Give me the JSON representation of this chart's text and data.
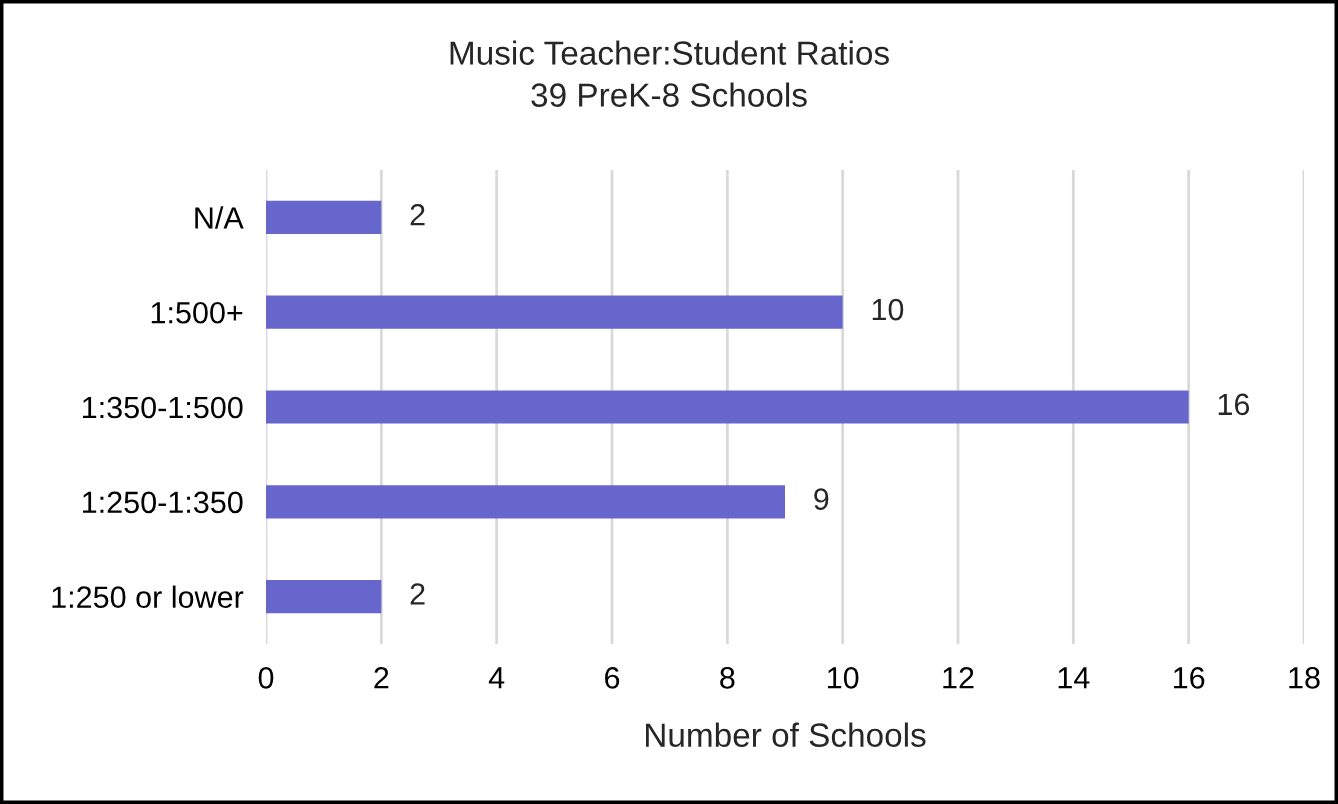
{
  "chart_data": {
    "type": "bar",
    "orientation": "horizontal",
    "title": "Music Teacher:Student Ratios",
    "subtitle": "39 PreK-8 Schools",
    "xlabel": "Number of Schools",
    "categories": [
      "N/A",
      "1:500+",
      "1:350-1:500",
      "1:250-1:350",
      "1:250 or lower"
    ],
    "values": [
      2,
      10,
      16,
      9,
      2
    ],
    "color": "#6666cc",
    "xlim": [
      0,
      18
    ],
    "xticks": [
      0,
      2,
      4,
      6,
      8,
      10,
      12,
      14,
      16,
      18
    ],
    "grid": "x",
    "data_labels": true
  }
}
